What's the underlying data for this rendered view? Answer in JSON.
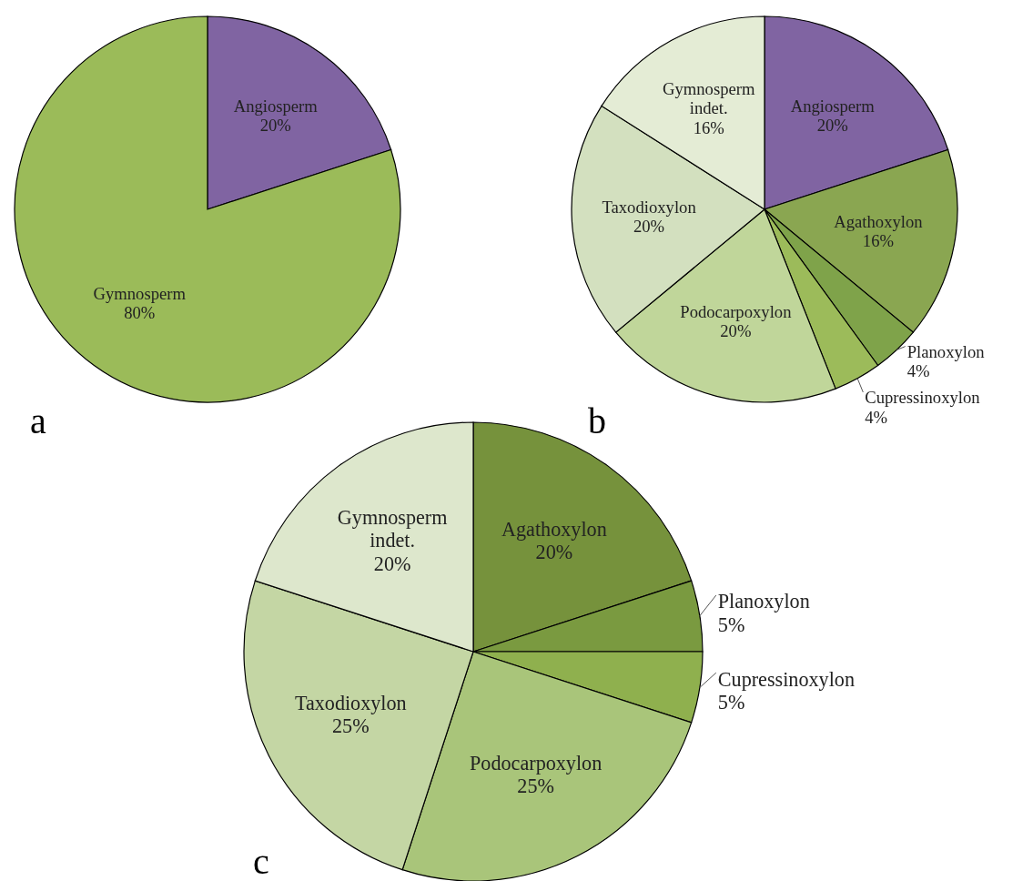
{
  "chart_data": [
    {
      "type": "pie",
      "categories": [
        "Angiosperm",
        "Gymnosperm"
      ],
      "values": [
        20,
        80
      ],
      "value_labels": [
        "20%",
        "80%"
      ],
      "colors": [
        "#8064a2",
        "#9bbb59"
      ],
      "annotations": [
        "a"
      ]
    },
    {
      "type": "pie",
      "categories": [
        "Angiosperm",
        "Agathoxylon",
        "Planoxylon",
        "Cupressinoxylon",
        "Podocarpoxylon",
        "Taxodioxylon",
        "Gymnosperm indet."
      ],
      "values": [
        20,
        16,
        4,
        4,
        20,
        20,
        16
      ],
      "value_labels": [
        "20%",
        "16%",
        "4%",
        "4%",
        "20%",
        "20%",
        "16%"
      ],
      "colors": [
        "#8064a2",
        "#8aa651",
        "#7fa34a",
        "#9cbb5a",
        "#c0d69a",
        "#d3e0bf",
        "#e4ecd5"
      ],
      "annotations": [
        "b"
      ]
    },
    {
      "type": "pie",
      "categories": [
        "Agathoxylon",
        "Planoxylon",
        "Cupressinoxylon",
        "Podocarpoxylon",
        "Taxodioxylon",
        "Gymnosperm indet."
      ],
      "values": [
        20,
        5,
        5,
        25,
        25,
        20
      ],
      "value_labels": [
        "20%",
        "5%",
        "5%",
        "25%",
        "25%",
        "20%"
      ],
      "colors": [
        "#76923c",
        "#7a9a40",
        "#8fb04e",
        "#a9c57a",
        "#c4d6a4",
        "#dde7cc"
      ],
      "annotations": [
        "c"
      ]
    }
  ]
}
